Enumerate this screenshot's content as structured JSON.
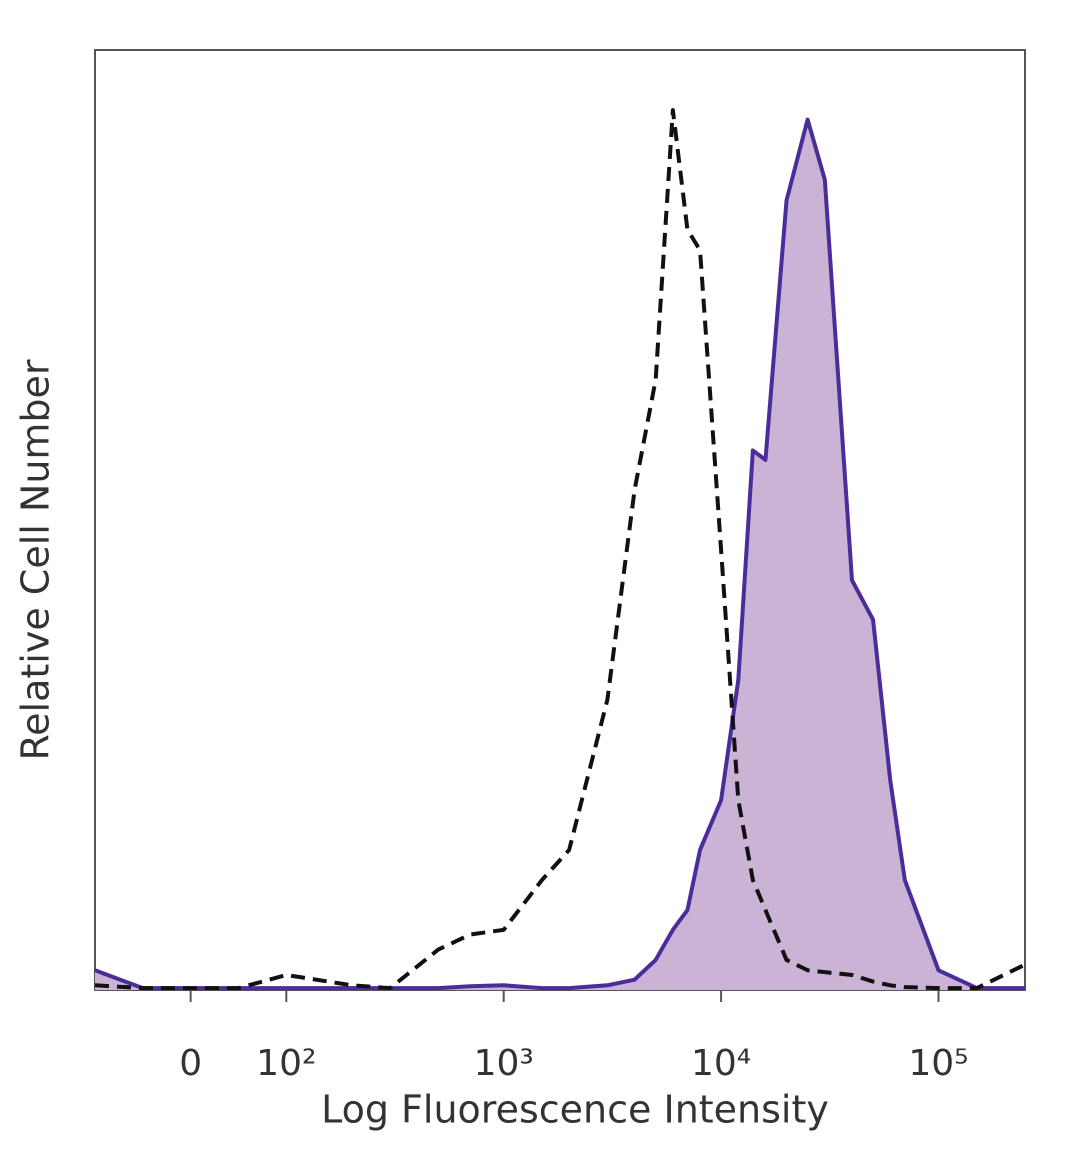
{
  "chart_data": {
    "type": "histogram-overlay",
    "xlabel": "Log Fluorescence Intensity",
    "ylabel": "Relative Cell Number",
    "x_scale": "biexponential",
    "x": [
      -100,
      -50,
      0,
      50,
      100,
      200,
      300,
      500,
      700,
      1000,
      1500,
      2000,
      3000,
      4000,
      5000,
      6000,
      7000,
      8000,
      10000,
      12000,
      14000,
      16000,
      20000,
      25000,
      30000,
      40000,
      50000,
      60000,
      70000,
      100000,
      150000,
      250000
    ],
    "series": [
      {
        "color": "#4b2d9a",
        "fill": "#cbb3d5",
        "dashed": false,
        "values": [
          2.1,
          0.2,
          0.2,
          0.2,
          0.2,
          0.2,
          0.2,
          0.2,
          0.4,
          0.5,
          0.2,
          0.2,
          0.5,
          1.1,
          3.2,
          6.4,
          8.5,
          14.9,
          20.2,
          33,
          57.4,
          56.4,
          84,
          92.6,
          86.2,
          43.6,
          39.4,
          22.3,
          11.7,
          2.1,
          0.2,
          0.2
        ]
      },
      {
        "color": "#111111",
        "fill": null,
        "dashed": true,
        "values": [
          0.5,
          0.2,
          0.2,
          0.2,
          1.6,
          0.5,
          0.2,
          4.3,
          5.9,
          6.4,
          11.7,
          14.9,
          30.9,
          53.2,
          64.9,
          93.6,
          80.9,
          78.7,
          46.8,
          20.2,
          11.7,
          8.5,
          3.2,
          2.1,
          1.9,
          1.6,
          0.9,
          0.5,
          0.3,
          0.2,
          0.2,
          2.7
        ]
      }
    ],
    "xlim": [
      -100,
      250000
    ],
    "ylim": [
      0,
      100
    ],
    "xticks": [
      0,
      {
        "value": 100,
        "label": "10²"
      },
      {
        "value": 1000,
        "label": "10³"
      },
      {
        "value": 10000,
        "label": "10⁴"
      },
      {
        "value": 100000,
        "label": "10⁵"
      }
    ]
  }
}
